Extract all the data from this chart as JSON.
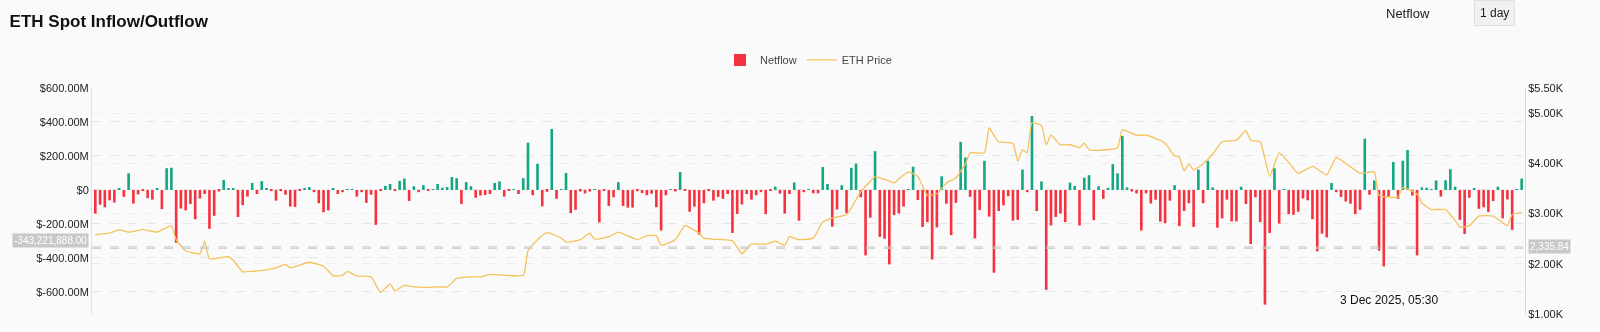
{
  "chart_data": {
    "type": "bar",
    "title": "ETH Spot Inflow/Outflow",
    "categories": [
      null,
      null,
      null,
      null,
      null,
      null,
      null,
      null,
      null,
      null,
      null,
      null,
      null,
      null,
      null,
      null,
      null,
      null,
      null,
      null,
      null,
      null,
      null,
      null,
      null,
      null,
      null,
      null,
      null,
      null,
      null,
      null,
      null,
      null,
      null,
      null,
      null,
      null,
      null,
      null,
      null,
      null,
      null,
      null,
      null,
      null,
      null,
      null,
      null,
      null,
      null,
      null,
      null,
      null,
      null,
      null,
      null,
      null,
      null,
      null,
      null,
      null,
      null,
      null,
      null,
      null,
      null,
      null,
      null,
      null,
      null,
      null,
      null,
      null,
      null,
      null,
      null,
      null,
      null,
      null,
      null,
      null,
      null,
      null,
      null,
      null,
      null,
      null,
      null,
      null,
      null,
      null,
      null,
      null,
      null,
      null,
      null,
      null,
      null,
      null,
      null,
      null,
      null,
      null,
      null,
      null,
      null,
      null,
      null,
      null,
      null,
      null,
      null,
      null,
      null,
      null,
      null,
      null,
      null,
      null,
      null,
      null,
      null,
      null,
      null,
      null,
      null,
      null,
      null,
      null,
      null,
      null,
      null,
      null,
      null,
      null,
      null,
      null,
      null,
      null,
      null,
      null,
      null,
      null,
      null,
      null,
      null,
      null,
      null,
      null,
      null,
      null,
      null,
      null,
      null,
      null,
      null,
      null,
      null,
      null,
      null,
      null,
      null,
      null,
      null,
      null,
      null,
      null,
      null,
      null,
      null,
      null,
      null,
      null,
      null,
      null,
      null,
      null,
      null,
      null,
      null,
      null,
      null,
      null,
      null,
      null,
      null,
      null,
      null,
      null,
      null,
      null,
      null,
      null,
      null,
      null,
      null,
      null,
      null,
      null,
      null,
      null,
      null,
      null,
      null,
      null,
      null,
      null,
      null,
      null,
      null,
      null,
      null,
      null,
      null,
      null,
      null,
      null,
      null,
      null,
      null,
      null,
      null,
      null,
      null,
      null,
      null,
      null,
      null,
      null,
      null,
      null,
      null,
      null,
      null,
      null,
      null,
      null,
      null,
      null,
      null,
      null,
      null,
      null,
      null,
      null,
      null,
      null,
      null,
      null,
      null,
      null,
      null,
      null,
      null,
      null,
      null,
      null,
      null,
      null,
      null,
      null,
      null,
      null,
      null,
      null,
      null,
      null,
      null,
      null,
      null,
      null,
      null,
      null,
      null,
      null,
      null,
      null,
      null,
      null,
      null,
      null,
      null,
      null,
      null,
      null,
      null,
      null,
      null,
      null,
      null,
      null,
      null,
      null,
      null,
      null,
      null,
      null,
      null,
      null,
      null
    ],
    "series": [
      {
        "name": "Netflow",
        "color": "#2fc27b",
        "values": [
          -139,
          -87,
          -102,
          -61,
          -74,
          9,
          -41,
          98,
          -80,
          -26,
          -6,
          -48,
          -57,
          7,
          -113,
          128,
          131,
          -311,
          -109,
          -120,
          -83,
          -172,
          -50,
          -24,
          -229,
          -152,
          -9,
          59,
          11,
          9,
          -159,
          -89,
          -39,
          41,
          -24,
          52,
          7,
          -4,
          -63,
          -4,
          -28,
          -98,
          -100,
          -4,
          7,
          17,
          -13,
          -78,
          -131,
          -120,
          7,
          -24,
          -13,
          5,
          5,
          -39,
          -13,
          -76,
          -28,
          -205,
          -4,
          24,
          35,
          -4,
          54,
          67,
          -65,
          22,
          -13,
          28,
          -6,
          2,
          35,
          13,
          17,
          76,
          69,
          -83,
          46,
          22,
          -46,
          -33,
          -30,
          -24,
          41,
          50,
          -39,
          -4,
          5,
          -24,
          69,
          278,
          -31,
          154,
          -96,
          -11,
          359,
          -52,
          5,
          100,
          -137,
          -117,
          -9,
          -20,
          -9,
          5,
          -191,
          -2,
          -94,
          -43,
          46,
          -94,
          -104,
          -104,
          -7,
          -18,
          -31,
          -22,
          -102,
          -239,
          -31,
          5,
          -9,
          105,
          -6,
          -128,
          -98,
          -263,
          -78,
          -6,
          -63,
          -41,
          -52,
          -24,
          -253,
          -141,
          -85,
          -24,
          -57,
          -31,
          -13,
          -142,
          -4,
          20,
          -22,
          -139,
          -24,
          44,
          -181,
          -13,
          5,
          -20,
          -20,
          135,
          35,
          -216,
          -115,
          28,
          -137,
          130,
          155,
          -43,
          -385,
          -163,
          228,
          -276,
          -287,
          -438,
          -148,
          -139,
          -98,
          2,
          137,
          -59,
          -218,
          -189,
          -409,
          -220,
          80,
          -81,
          -266,
          -76,
          283,
          191,
          -41,
          -285,
          -118,
          172,
          -157,
          -487,
          -124,
          -91,
          -37,
          -181,
          -176,
          120,
          -13,
          435,
          -124,
          50,
          -588,
          -209,
          -159,
          -139,
          -189,
          43,
          24,
          -209,
          72,
          87,
          -178,
          22,
          -52,
          13,
          152,
          98,
          318,
          15,
          -9,
          -20,
          -239,
          -20,
          -80,
          -57,
          -187,
          -196,
          -63,
          28,
          -213,
          -124,
          -78,
          -218,
          120,
          -78,
          172,
          15,
          -222,
          -167,
          -57,
          -185,
          -185,
          19,
          -83,
          -318,
          -43,
          -189,
          -675,
          -253,
          128,
          -198,
          4,
          -142,
          -146,
          -128,
          -50,
          -61,
          -172,
          -361,
          -257,
          -279,
          41,
          -13,
          -41,
          -68,
          -81,
          -142,
          -117,
          302,
          -28,
          56,
          -357,
          -450,
          -39,
          165,
          -52,
          172,
          235,
          -33,
          -385,
          15,
          13,
          2,
          56,
          -39,
          57,
          122,
          19,
          -176,
          -259,
          -46,
          9,
          -111,
          -102,
          -130,
          -65,
          19,
          -167,
          -56,
          -235,
          5,
          67
        ],
        "colors": [
          "#f5323f",
          "#f5323f",
          "#f5323f",
          "#f5323f",
          "#f5323f",
          "#14a683",
          "#f5323f",
          "#14a683",
          "#f5323f",
          "#f5323f",
          "#f5323f",
          "#f5323f",
          "#f5323f",
          "#14a683",
          "#f5323f",
          "#14a683",
          "#14a683",
          "#f5323f",
          "#f5323f",
          "#f5323f",
          "#f5323f",
          "#f5323f",
          "#f5323f",
          "#f5323f",
          "#f5323f",
          "#f5323f",
          "#f5323f",
          "#14a683",
          "#14a683",
          "#14a683",
          "#f5323f",
          "#f5323f",
          "#f5323f",
          "#14a683",
          "#f5323f",
          "#14a683",
          "#14a683",
          "#f5323f",
          "#f5323f",
          "#f5323f",
          "#f5323f",
          "#f5323f",
          "#f5323f",
          "#f5323f",
          "#14a683",
          "#14a683",
          "#f5323f",
          "#f5323f",
          "#f5323f",
          "#f5323f",
          "#14a683",
          "#f5323f",
          "#f5323f",
          "#14a683",
          "#14a683",
          "#f5323f",
          "#f5323f",
          "#f5323f",
          "#f5323f",
          "#f5323f",
          "#f5323f",
          "#14a683",
          "#14a683",
          "#f5323f",
          "#14a683",
          "#14a683",
          "#f5323f",
          "#14a683",
          "#f5323f",
          "#14a683",
          "#f5323f",
          "#14a683",
          "#14a683",
          "#14a683",
          "#14a683",
          "#14a683",
          "#14a683",
          "#f5323f",
          "#14a683",
          "#14a683",
          "#f5323f",
          "#f5323f",
          "#f5323f",
          "#f5323f",
          "#14a683",
          "#14a683",
          "#f5323f",
          "#f5323f",
          "#14a683",
          "#f5323f",
          "#14a683",
          "#14a683",
          "#f5323f",
          "#14a683",
          "#f5323f",
          "#f5323f",
          "#14a683",
          "#f5323f",
          "#14a683",
          "#14a683",
          "#f5323f",
          "#f5323f",
          "#f5323f",
          "#f5323f",
          "#f5323f",
          "#14a683",
          "#f5323f",
          "#f5323f",
          "#f5323f",
          "#f5323f",
          "#14a683",
          "#f5323f",
          "#f5323f",
          "#f5323f",
          "#f5323f",
          "#f5323f",
          "#f5323f",
          "#f5323f",
          "#f5323f",
          "#f5323f",
          "#f5323f",
          "#14a683",
          "#f5323f",
          "#14a683",
          "#f5323f",
          "#f5323f",
          "#f5323f",
          "#f5323f",
          "#f5323f",
          "#f5323f",
          "#f5323f",
          "#f5323f",
          "#f5323f",
          "#f5323f",
          "#f5323f",
          "#f5323f",
          "#f5323f",
          "#f5323f",
          "#f5323f",
          "#f5323f",
          "#f5323f",
          "#f5323f",
          "#f5323f",
          "#14a683",
          "#f5323f",
          "#f5323f",
          "#f5323f",
          "#14a683",
          "#f5323f",
          "#f5323f",
          "#14a683",
          "#f5323f",
          "#f5323f",
          "#14a683",
          "#14a683",
          "#f5323f",
          "#f5323f",
          "#14a683",
          "#f5323f",
          "#14a683",
          "#14a683",
          "#f5323f",
          "#f5323f",
          "#f5323f",
          "#14a683",
          "#f5323f",
          "#f5323f",
          "#f5323f",
          "#f5323f",
          "#f5323f",
          "#f5323f",
          "#14a683",
          "#14a683",
          "#f5323f",
          "#f5323f",
          "#f5323f",
          "#f5323f",
          "#f5323f",
          "#14a683",
          "#f5323f",
          "#f5323f",
          "#f5323f",
          "#14a683",
          "#14a683",
          "#f5323f",
          "#f5323f",
          "#f5323f",
          "#14a683",
          "#f5323f",
          "#f5323f",
          "#f5323f",
          "#f5323f",
          "#f5323f",
          "#f5323f",
          "#f5323f",
          "#14a683",
          "#f5323f",
          "#14a683",
          "#f5323f",
          "#14a683",
          "#f5323f",
          "#f5323f",
          "#f5323f",
          "#f5323f",
          "#f5323f",
          "#14a683",
          "#14a683",
          "#f5323f",
          "#14a683",
          "#14a683",
          "#f5323f",
          "#14a683",
          "#f5323f",
          "#14a683",
          "#14a683",
          "#14a683",
          "#14a683",
          "#14a683",
          "#f5323f",
          "#f5323f",
          "#f5323f",
          "#f5323f",
          "#f5323f",
          "#f5323f",
          "#f5323f",
          "#f5323f",
          "#f5323f",
          "#14a683",
          "#f5323f",
          "#f5323f",
          "#f5323f",
          "#f5323f",
          "#14a683",
          "#f5323f",
          "#14a683",
          "#14a683",
          "#f5323f",
          "#f5323f",
          "#f5323f",
          "#f5323f",
          "#f5323f",
          "#14a683",
          "#f5323f",
          "#f5323f",
          "#f5323f",
          "#f5323f",
          "#f5323f",
          "#f5323f",
          "#14a683",
          "#f5323f",
          "#14a683",
          "#f5323f",
          "#f5323f",
          "#f5323f",
          "#f5323f",
          "#f5323f",
          "#f5323f",
          "#f5323f",
          "#f5323f",
          "#f5323f",
          "#14a683",
          "#f5323f",
          "#f5323f",
          "#f5323f",
          "#f5323f",
          "#f5323f",
          "#f5323f",
          "#14a683",
          "#f5323f",
          "#14a683",
          "#f5323f",
          "#f5323f",
          "#f5323f",
          "#14a683",
          "#f5323f",
          "#14a683",
          "#14a683",
          "#f5323f",
          "#f5323f",
          "#14a683",
          "#14a683",
          "#14a683",
          "#14a683",
          "#f5323f",
          "#14a683",
          "#14a683",
          "#14a683",
          "#f5323f",
          "#f5323f",
          "#f5323f",
          "#14a683",
          "#f5323f",
          "#f5323f",
          "#f5323f",
          "#f5323f",
          "#14a683",
          "#f5323f",
          "#f5323f",
          "#f5323f",
          "#14a683",
          "#14a683"
        ]
      },
      {
        "name": "ETH Price",
        "type": "line",
        "axis": "y2",
        "color": "#f5c15a",
        "values": [
          2580,
          null,
          null,
          2610,
          null,
          2680,
          null,
          2630,
          null,
          null,
          2680,
          null,
          null,
          2630,
          null,
          null,
          2760,
          2480,
          null,
          2260,
          null,
          null,
          2200,
          2450,
          2100,
          null,
          null,
          null,
          2140,
          2070,
          null,
          1840,
          null,
          1850,
          null,
          null,
          1880,
          null,
          1920,
          null,
          1990,
          1920,
          null,
          null,
          null,
          2030,
          null,
          null,
          1950,
          null,
          1760,
          null,
          1770,
          1850,
          null,
          1760,
          null,
          null,
          1740,
          null,
          1430,
          null,
          1600,
          1460,
          null,
          1570,
          null,
          1540,
          null,
          1530,
          null,
          null,
          1540,
          null,
          1540,
          null,
          1710,
          null,
          null,
          1740,
          null,
          1740,
          null,
          1790,
          null,
          null,
          null,
          null,
          null,
          null,
          1770,
          2260,
          null,
          2480,
          null,
          2620,
          null,
          null,
          2510,
          2430,
          null,
          null,
          2480,
          null,
          2610,
          2490,
          null,
          null,
          2540,
          null,
          2630,
          null,
          null,
          null,
          2480,
          null,
          2560,
          null,
          2560,
          2370,
          null,
          null,
          2480,
          null,
          2760,
          null,
          null,
          2610,
          2510,
          null,
          2490,
          null,
          null,
          null,
          2460,
          null,
          2200,
          null,
          2390,
          null,
          null,
          2390,
          null,
          2450,
          null,
          2370,
          2540,
          null,
          2480,
          null,
          null,
          2510,
          null,
          2830,
          null,
          2910,
          null,
          null,
          2980,
          null,
          null,
          3430,
          null,
          null,
          3730,
          null,
          3680,
          null,
          3610,
          3690,
          null,
          3830,
          null,
          3740,
          null,
          3360,
          null,
          3390,
          null,
          3610,
          null,
          3710,
          null,
          3990,
          4210,
          null,
          null,
          4210,
          4710,
          4560,
          4430,
          null,
          null,
          4400,
          4040,
          4270,
          4210,
          4810,
          null,
          4750,
          4370,
          4560,
          null,
          4370,
          null,
          4370,
          null,
          4310,
          4400,
          4270,
          null,
          4260,
          null,
          null,
          null,
          4310,
          4670,
          null,
          null,
          4560,
          null,
          4560,
          4530,
          null,
          null,
          4400,
          null,
          4150,
          4120,
          3850,
          3990,
          3870,
          null,
          3990,
          null,
          4180,
          null,
          4430,
          null,
          null,
          4460,
          null,
          4650,
          4460,
          null,
          4430,
          null,
          3740,
          null,
          4210,
          null,
          4020,
          null,
          3800,
          null,
          null,
          3940,
          null,
          null,
          3770,
          null,
          4120,
          null,
          null,
          3930,
          null,
          3800,
          null,
          null,
          3830,
          3360,
          null,
          null,
          null,
          3330,
          3520,
          null,
          null,
          3390,
          3210,
          null,
          3080,
          null,
          null,
          3080,
          null,
          2860,
          2730,
          null,
          2760,
          null,
          2950,
          null,
          null,
          2950,
          null,
          null,
          2760,
          2980,
          null,
          3020
        ]
      }
    ],
    "ylim": [
      -730,
      600
    ],
    "yticks": [
      {
        "value": 600,
        "label": "$600.00M"
      },
      {
        "value": 400,
        "label": "$400.00M"
      },
      {
        "value": 200,
        "label": "$200.00M"
      },
      {
        "value": 0,
        "label": "$0"
      },
      {
        "value": -200,
        "label": "$-200.00M"
      },
      {
        "value": -400,
        "label": "$-400.00M"
      },
      {
        "value": -600,
        "label": "$-600.00M"
      }
    ],
    "y2lim": [
      1000,
      5500
    ],
    "y2ticks": [
      {
        "value": 5500,
        "label": "$5.50K"
      },
      {
        "value": 5000,
        "label": "$5.00K"
      },
      {
        "value": 4000,
        "label": "$4.00K"
      },
      {
        "value": 3000,
        "label": "$3.00K"
      },
      {
        "value": 2000,
        "label": "$2.00K"
      },
      {
        "value": 1000,
        "label": "$1.00K"
      }
    ],
    "grid": "y",
    "legend": "top",
    "ref_lines": [
      {
        "axis": "y",
        "value": -343.221888,
        "label": "-343,221,888.00",
        "color": "#c8c8c8",
        "line_style": "dashed"
      },
      {
        "axis": "y2",
        "value": 2335.84,
        "label": "2,335.84",
        "color": "#c8c8c8",
        "line_style": "dashed"
      }
    ],
    "annotations": [
      "Netflow",
      "1 day",
      "3 Dec 2025, 05:30"
    ]
  }
}
